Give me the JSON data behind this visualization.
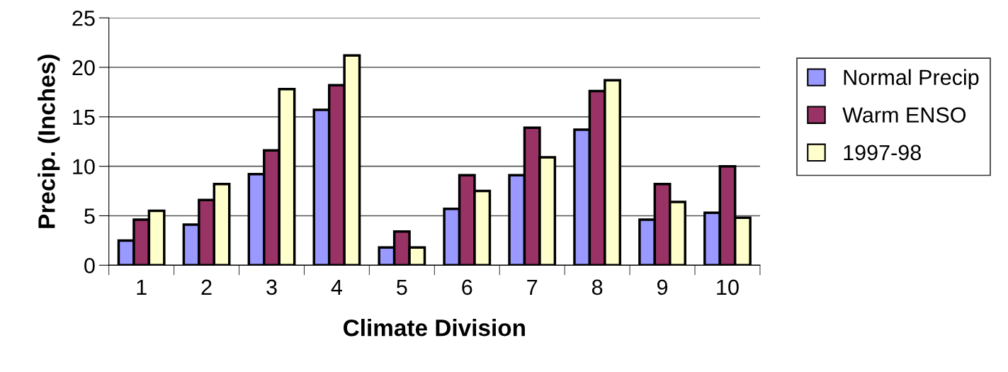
{
  "chart_data": {
    "type": "bar",
    "xlabel": "Climate Division",
    "ylabel": "Precip. (Inches)",
    "categories": [
      "1",
      "2",
      "3",
      "4",
      "5",
      "6",
      "7",
      "8",
      "9",
      "10"
    ],
    "series": [
      {
        "name": "Normal Precip",
        "color": "#9999ff",
        "values": [
          2.5,
          4.1,
          9.2,
          15.7,
          1.8,
          5.7,
          9.1,
          13.7,
          4.6,
          5.3
        ]
      },
      {
        "name": "Warm ENSO",
        "color": "#993366",
        "values": [
          4.6,
          6.6,
          11.6,
          18.2,
          3.4,
          9.1,
          13.9,
          17.6,
          8.2,
          10.0
        ]
      },
      {
        "name": "1997-98",
        "color": "#ffffcc",
        "values": [
          5.5,
          8.2,
          17.8,
          21.2,
          1.8,
          7.5,
          10.9,
          18.7,
          6.4,
          4.8
        ]
      }
    ],
    "ylim": [
      0,
      25
    ],
    "yticks": [
      0,
      5,
      10,
      15,
      20,
      25
    ],
    "grid": "y",
    "legend": "right"
  }
}
